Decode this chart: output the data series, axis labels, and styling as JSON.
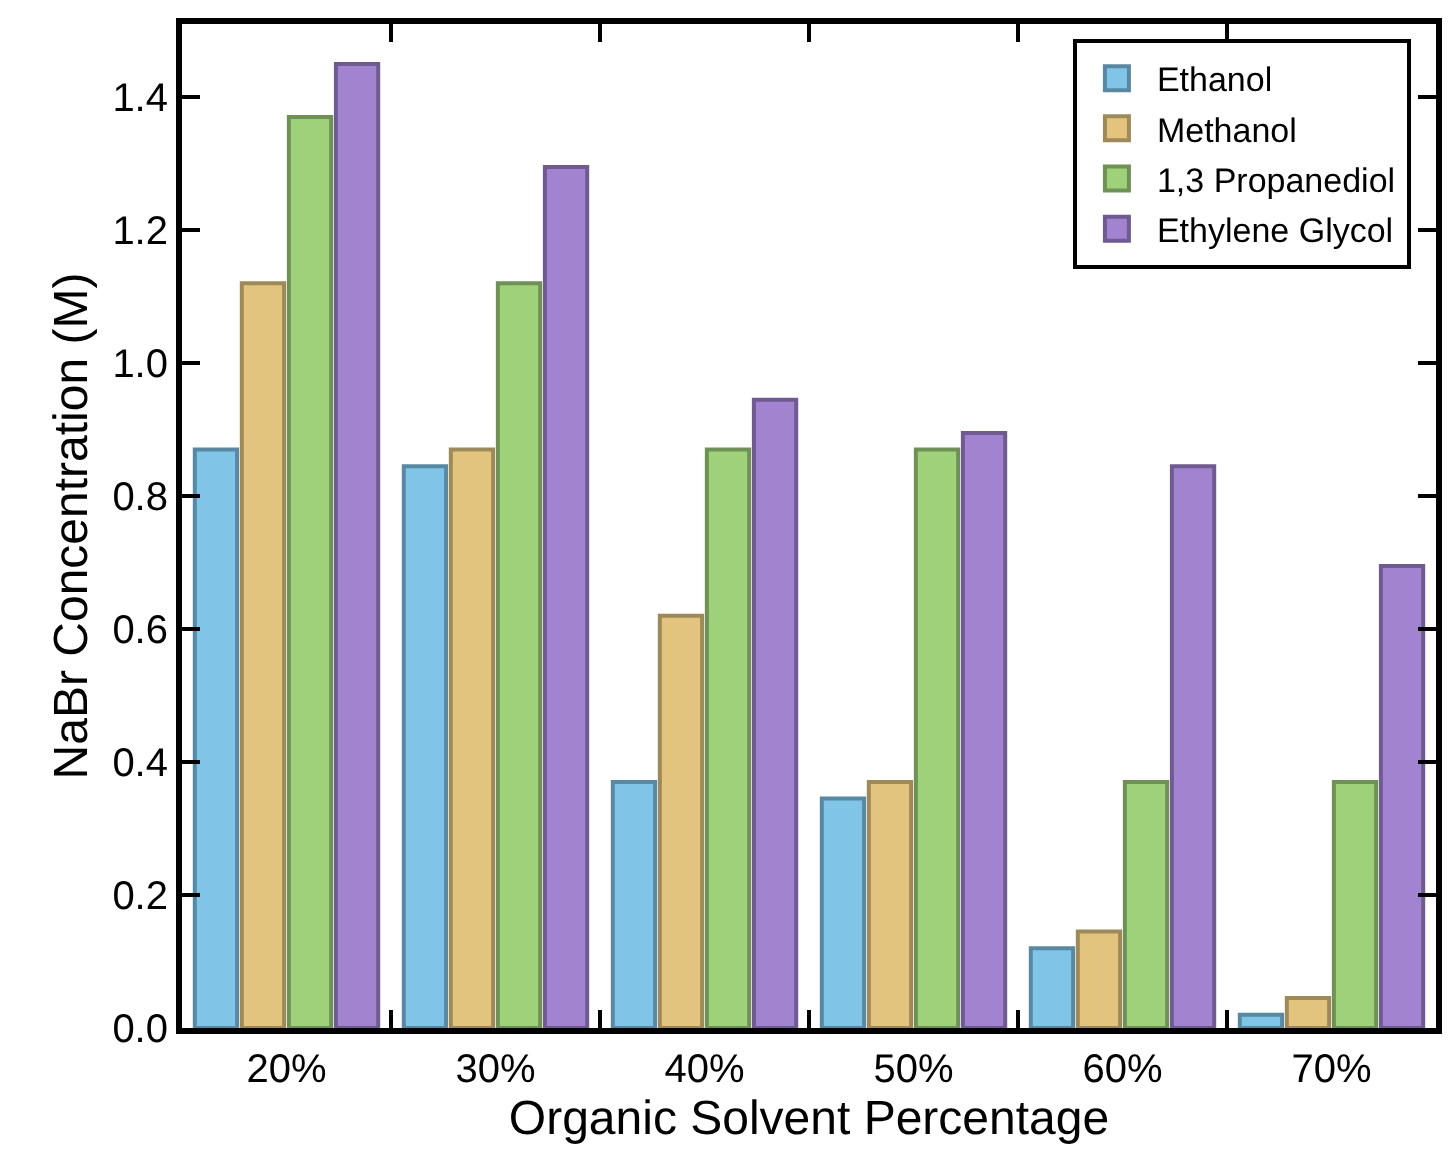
{
  "chart_data": {
    "type": "bar",
    "xlabel": "Organic Solvent Percentage",
    "ylabel": "NaBr Concentration (M)",
    "categories": [
      "20%",
      "30%",
      "40%",
      "50%",
      "60%",
      "70%"
    ],
    "series": [
      {
        "name": "Ethanol",
        "color": "#80c4e8",
        "values": [
          0.87,
          0.845,
          0.37,
          0.345,
          0.12,
          0.02
        ]
      },
      {
        "name": "Methanol",
        "color": "#e2c47e",
        "values": [
          1.12,
          0.87,
          0.62,
          0.37,
          0.145,
          0.045
        ]
      },
      {
        "name": "1,3 Propanediol",
        "color": "#9fd07a",
        "values": [
          1.37,
          1.12,
          0.87,
          0.87,
          0.37,
          0.37
        ]
      },
      {
        "name": "Ethylene Glycol",
        "color": "#a183d0",
        "values": [
          1.45,
          1.295,
          0.945,
          0.895,
          0.845,
          0.695
        ]
      }
    ],
    "ylim": [
      0,
      1.51
    ],
    "yticks": [
      {
        "value": 0,
        "label": "0.0"
      },
      0.2,
      0.4,
      0.6,
      0.8,
      {
        "value": 1,
        "label": "1.0"
      },
      1.2,
      1.4
    ],
    "legend": "top right"
  }
}
